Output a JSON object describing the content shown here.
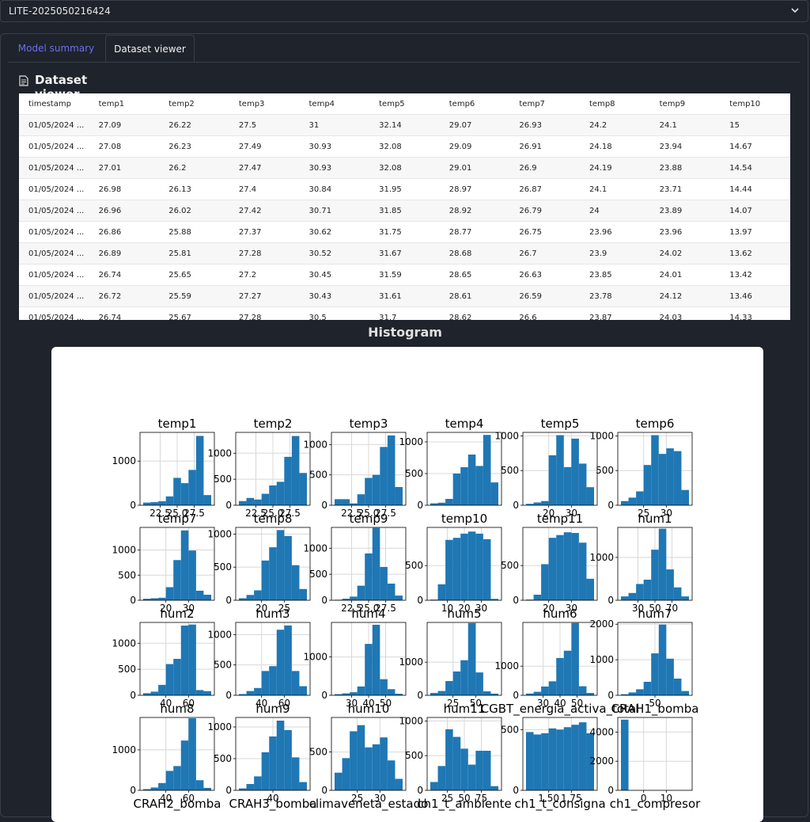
{
  "header": {
    "title": "LITE-2025050216424",
    "chevron_icon": "chevron-down-icon"
  },
  "tabs": [
    {
      "label": "Model summary"
    },
    {
      "label": "Dataset viewer"
    }
  ],
  "section": {
    "title": "Dataset viewer",
    "icon": "document-icon"
  },
  "table": {
    "columns": [
      "timestamp",
      "temp1",
      "temp2",
      "temp3",
      "temp4",
      "temp5",
      "temp6",
      "temp7",
      "temp8",
      "temp9",
      "temp10"
    ],
    "rows": [
      [
        "01/05/2024 ...",
        "27.09",
        "26.22",
        "27.5",
        "31",
        "32.14",
        "29.07",
        "26.93",
        "24.2",
        "24.1",
        "15"
      ],
      [
        "01/05/2024 ...",
        "27.08",
        "26.23",
        "27.49",
        "30.93",
        "32.08",
        "29.09",
        "26.91",
        "24.18",
        "23.94",
        "14.67"
      ],
      [
        "01/05/2024 ...",
        "27.01",
        "26.2",
        "27.47",
        "30.93",
        "32.08",
        "29.01",
        "26.9",
        "24.19",
        "23.88",
        "14.54"
      ],
      [
        "01/05/2024 ...",
        "26.98",
        "26.13",
        "27.4",
        "30.84",
        "31.95",
        "28.97",
        "26.87",
        "24.1",
        "23.71",
        "14.44"
      ],
      [
        "01/05/2024 ...",
        "26.96",
        "26.02",
        "27.42",
        "30.71",
        "31.85",
        "28.92",
        "26.79",
        "24",
        "23.89",
        "14.07"
      ],
      [
        "01/05/2024 ...",
        "26.86",
        "25.88",
        "27.37",
        "30.62",
        "31.75",
        "28.77",
        "26.75",
        "23.96",
        "23.96",
        "13.97"
      ],
      [
        "01/05/2024 ...",
        "26.89",
        "25.81",
        "27.28",
        "30.52",
        "31.67",
        "28.68",
        "26.7",
        "23.9",
        "24.02",
        "13.62"
      ],
      [
        "01/05/2024 ...",
        "26.74",
        "25.65",
        "27.2",
        "30.45",
        "31.59",
        "28.65",
        "26.63",
        "23.85",
        "24.01",
        "13.42"
      ],
      [
        "01/05/2024 ...",
        "26.72",
        "25.59",
        "27.27",
        "30.43",
        "31.61",
        "28.61",
        "26.59",
        "23.78",
        "24.12",
        "13.46"
      ],
      [
        "01/05/2024 ...",
        "26.74",
        "25.67",
        "27.28",
        "30.5",
        "31.7",
        "28.62",
        "26.6",
        "23.87",
        "24.03",
        "14.33"
      ]
    ]
  },
  "histogram": {
    "title": "Histogram"
  },
  "chart_data": {
    "type": "bar",
    "bar_color": "#1f77b4",
    "panels": [
      {
        "title": "temp1",
        "counts": [
          60,
          70,
          90,
          200,
          620,
          500,
          800,
          1570,
          230
        ],
        "yticks": [
          "0",
          "1000"
        ],
        "ymax": 1650,
        "xticks": [
          "22.5",
          "25.0",
          "27.5"
        ]
      },
      {
        "title": "temp2",
        "counts": [
          80,
          140,
          110,
          220,
          380,
          450,
          930,
          1330,
          620
        ],
        "yticks": [
          "0",
          "500",
          "1000"
        ],
        "ymax": 1400,
        "xticks": [
          "22.5",
          "25.0",
          "27.5"
        ]
      },
      {
        "title": "temp3",
        "counts": [
          100,
          100,
          30,
          180,
          450,
          500,
          960,
          1150,
          300
        ],
        "yticks": [
          "0",
          "500",
          "1000"
        ],
        "ymax": 1200,
        "xticks": [
          "22.5",
          "25.0",
          "27.5"
        ]
      },
      {
        "title": "temp4",
        "counts": [
          30,
          40,
          100,
          500,
          600,
          800,
          620,
          1110,
          360
        ],
        "yticks": [
          "0",
          "500",
          "1000"
        ],
        "ymax": 1150,
        "xticks": []
      },
      {
        "title": "temp5",
        "counts": [
          20,
          40,
          60,
          720,
          1010,
          550,
          960,
          600,
          260
        ],
        "yticks": [
          "0",
          "500",
          "1000"
        ],
        "ymax": 1050,
        "xticks": [
          "20",
          "30"
        ]
      },
      {
        "title": "temp6",
        "counts": [
          60,
          110,
          200,
          580,
          1010,
          740,
          820,
          780,
          220
        ],
        "yticks": [
          "0",
          "500",
          "1000"
        ],
        "ymax": 1050,
        "xticks": [
          "25",
          "30"
        ]
      },
      {
        "title": "temp7",
        "counts": [
          30,
          40,
          50,
          260,
          800,
          1390,
          990,
          190,
          110
        ],
        "yticks": [
          "0",
          "500",
          "1000"
        ],
        "ymax": 1450,
        "xticks": [
          "20",
          "30"
        ]
      },
      {
        "title": "temp8",
        "counts": [
          30,
          80,
          150,
          600,
          800,
          1060,
          970,
          530,
          170
        ],
        "yticks": [
          "0",
          "500",
          "1000"
        ],
        "ymax": 1100,
        "xticks": [
          "20",
          "25"
        ]
      },
      {
        "title": "temp9",
        "counts": [
          10,
          30,
          70,
          280,
          900,
          1390,
          640,
          320,
          90
        ],
        "yticks": [
          "0",
          "500",
          "1000"
        ],
        "ymax": 1400,
        "xticks": [
          "22.5",
          "25.0",
          "27.5"
        ]
      },
      {
        "title": "temp10",
        "counts": [
          10,
          230,
          870,
          900,
          960,
          990,
          960,
          880,
          20
        ],
        "yticks": [
          "0",
          "500"
        ],
        "ymax": 1050,
        "xticks": [
          "10",
          "20",
          "30"
        ]
      },
      {
        "title": "temp11",
        "counts": [
          10,
          80,
          520,
          900,
          940,
          980,
          970,
          830,
          310
        ],
        "yticks": [
          "0",
          "500"
        ],
        "ymax": 1050,
        "xticks": [
          "20",
          "30"
        ]
      },
      {
        "title": "hum1",
        "counts": [
          90,
          170,
          380,
          480,
          1180,
          1670,
          720,
          300,
          90
        ],
        "yticks": [
          "0",
          "1000"
        ],
        "ymax": 1700,
        "xticks": [
          "30",
          "50",
          "70"
        ]
      },
      {
        "title": "hum2",
        "counts": [
          40,
          70,
          200,
          600,
          700,
          1340,
          1360,
          100,
          80
        ],
        "yticks": [
          "0",
          "500",
          "1000"
        ],
        "ymax": 1400,
        "xticks": [
          "40",
          "60"
        ]
      },
      {
        "title": "hum3",
        "counts": [
          20,
          70,
          120,
          400,
          480,
          1080,
          1150,
          400,
          150
        ],
        "yticks": [
          "0",
          "500",
          "1000"
        ],
        "ymax": 1200,
        "xticks": [
          "40",
          "60"
        ]
      },
      {
        "title": "hum4",
        "counts": [
          30,
          50,
          80,
          230,
          1340,
          1840,
          420,
          160,
          40
        ],
        "yticks": [
          "0",
          "1000"
        ],
        "ymax": 1900,
        "xticks": [
          "30",
          "40",
          "50"
        ]
      },
      {
        "title": "hum5",
        "counts": [
          70,
          130,
          430,
          720,
          1060,
          2180,
          690,
          120,
          50
        ],
        "yticks": [
          "0",
          "1000"
        ],
        "ymax": 2200,
        "xticks": [
          "25",
          "50"
        ]
      },
      {
        "title": "hum6",
        "counts": [
          60,
          120,
          300,
          480,
          1280,
          1530,
          2480,
          310,
          80
        ],
        "yticks": [
          "0",
          "1000"
        ],
        "ymax": 2500,
        "xticks": [
          "30",
          "40",
          "50"
        ]
      },
      {
        "title": "hum7",
        "counts": [
          30,
          80,
          170,
          380,
          1180,
          1990,
          1030,
          470,
          120
        ],
        "yticks": [
          "0",
          "1000",
          "2000"
        ],
        "ymax": 2050,
        "xticks": [
          "50"
        ]
      },
      {
        "title": "hum8",
        "counts": [
          30,
          70,
          180,
          480,
          600,
          1230,
          1780,
          250,
          60
        ],
        "yticks": [
          "0",
          "1000"
        ],
        "ymax": 1800,
        "xticks": [
          "40",
          "60"
        ]
      },
      {
        "title": "hum9",
        "counts": [
          30,
          100,
          220,
          600,
          850,
          1100,
          950,
          520,
          130
        ],
        "yticks": [
          "0",
          "500",
          "1000"
        ],
        "ymax": 1150,
        "xticks": [
          "40"
        ]
      },
      {
        "title": "hum10",
        "counts": [
          230,
          420,
          770,
          850,
          560,
          600,
          690,
          390,
          150
        ],
        "yticks": [
          "0",
          "500"
        ],
        "ymax": 950,
        "xticks": [
          "25",
          "30"
        ]
      },
      {
        "title": "hum11",
        "counts": [
          120,
          350,
          880,
          770,
          600,
          370,
          570,
          570,
          60
        ],
        "yticks": [
          "0",
          "500",
          "1000"
        ],
        "ymax": 1050,
        "xticks": [
          "25",
          "50",
          "75"
        ]
      },
      {
        "title": "CGBT_energia_activa_total",
        "counts": [
          480,
          460,
          470,
          510,
          500,
          520,
          540,
          560,
          470
        ],
        "yticks": [
          "0",
          "500"
        ],
        "ymax": 600,
        "xticks": [
          "1.50",
          "1.75"
        ]
      },
      {
        "title": "CRAH1_bomba",
        "counts": [
          4850,
          0,
          0,
          0,
          0,
          0,
          0,
          0,
          0
        ],
        "yticks": [
          "0",
          "2000",
          "4000"
        ],
        "ymax": 5000,
        "xticks": [
          "0",
          "10"
        ]
      }
    ],
    "bottom_labels": [
      "CRAH2_bomba",
      "CRAH3_bomba",
      "climaveneta_estado",
      "ch1_t_ambiente",
      "ch1_t_consigna",
      "ch1_compresor"
    ]
  }
}
